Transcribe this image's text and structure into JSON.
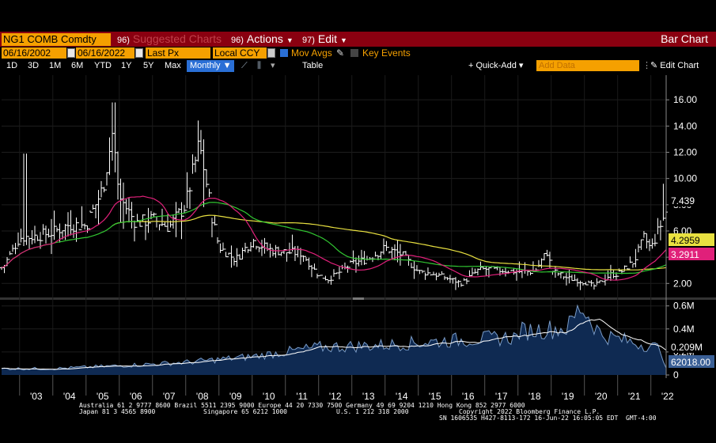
{
  "header": {
    "ticker": "NG1 COMB Comdty",
    "suggested": {
      "num": "96)",
      "label": "Suggested Charts"
    },
    "actions": {
      "num": "96)",
      "label": "Actions"
    },
    "edit": {
      "num": "97)",
      "label": "Edit"
    },
    "chart_type": "Bar Chart"
  },
  "toolbar": {
    "start_date": "06/16/2002",
    "end_date": "06/16/2022",
    "field": "Last Px",
    "currency": "Local CCY",
    "mov_avgs": "Mov Avgs",
    "key_events": "Key Events",
    "periods": [
      "1D",
      "3D",
      "1M",
      "6M",
      "YTD",
      "1Y",
      "5Y",
      "Max"
    ],
    "frequency": "Monthly",
    "table": "Table",
    "quick_add": "Quick-Add",
    "add_data_placeholder": "Add Data",
    "edit_chart": "Edit Chart"
  },
  "footer": {
    "line1": "Australia 61 2 9777 8600 Brazil 5511 2395 9000 Europe 44 20 7330 7500 Germany 49 69 9204 1210 Hong Kong 852 2977 6000",
    "line2a": "Japan 81 3 4565 8900",
    "line2b": "Singapore 65 6212 1000",
    "line2c": "U.S. 1 212 318 2000",
    "line2d": "Copyright 2022 Bloomberg Finance L.P.",
    "line3": "SN 1606535 H427-8113-172 16-Jun-22 16:05:05 EDT  GMT-4:00"
  },
  "colors": {
    "background": "#000000",
    "header_bar": "#8a0010",
    "field_orange": "#f5a000",
    "price_bars": "#ffffff",
    "ma_magenta": "#e0207a",
    "ma_green": "#32c832",
    "ma_yellow": "#e8e040",
    "volume_fill": "#0f2a52",
    "volume_line": "#7a9cc8"
  },
  "chart_data": [
    {
      "type": "bar",
      "description": "Monthly OHLC price bars",
      "x_ticks": [
        "'03",
        "'04",
        "'05",
        "'06",
        "'07",
        "'08",
        "'09",
        "'10",
        "'11",
        "'12",
        "'13",
        "'14",
        "'15",
        "'16",
        "'17",
        "'18",
        "'19",
        "'20",
        "'21",
        "'22"
      ],
      "y_ticks": [
        2,
        4,
        6,
        8,
        10,
        12,
        14,
        16
      ],
      "y_tick_labels": [
        "2.00",
        "4.00",
        "6.00",
        "8.00",
        "10.00",
        "12.00",
        "14.00",
        "16.00"
      ],
      "ylim": [
        0.7,
        17.2
      ],
      "x_range": [
        "2002-06",
        "2022-06"
      ],
      "series": [
        {
          "name": "Last Px",
          "years": [
            2002.5,
            2003,
            2003.5,
            2004,
            2004.5,
            2005,
            2005.5,
            2005.8,
            2006,
            2006.5,
            2007,
            2007.5,
            2008,
            2008.4,
            2008.5,
            2008.8,
            2009,
            2009.5,
            2010,
            2010.5,
            2011,
            2011.5,
            2012,
            2012.3,
            2013,
            2013.5,
            2014,
            2014.5,
            2015,
            2015.5,
            2016,
            2016.3,
            2016.8,
            2017,
            2017.5,
            2018,
            2018.5,
            2018.9,
            2019,
            2019.5,
            2020,
            2020.3,
            2020.8,
            2021,
            2021.5,
            2021.8,
            2022,
            2022.3,
            2022.45
          ],
          "values": [
            3.2,
            5.5,
            5.6,
            5.9,
            6.5,
            6.4,
            9.2,
            13.5,
            8.6,
            6.6,
            6.9,
            6.3,
            8.0,
            12.5,
            11.5,
            7.0,
            4.8,
            3.8,
            5.3,
            4.6,
            4.4,
            4.3,
            2.6,
            2.3,
            3.5,
            3.9,
            4.7,
            4.2,
            2.9,
            2.7,
            2.3,
            2.0,
            3.0,
            3.1,
            3.0,
            2.9,
            2.9,
            4.5,
            3.0,
            2.4,
            2.1,
            1.8,
            2.7,
            2.7,
            3.7,
            5.5,
            4.6,
            6.5,
            7.44
          ]
        },
        {
          "name": "Mov Avg (magenta)",
          "value_last": 3.2911
        },
        {
          "name": "Mov Avg (green)"
        },
        {
          "name": "Mov Avg (yellow)",
          "value_last": 4.2959
        }
      ],
      "last_value_labels": [
        "7.439",
        "4.2959",
        "3.2911"
      ]
    },
    {
      "type": "area",
      "description": "Volume",
      "y_ticks": [
        0,
        200000,
        400000,
        600000
      ],
      "y_tick_labels": [
        "0",
        "0.2M",
        "0.4M",
        "0.6M"
      ],
      "ylim": [
        0,
        650000
      ],
      "values_by_year": {
        "2002.5": 45000,
        "2004": 55000,
        "2006": 80000,
        "2008": 110000,
        "2010": 160000,
        "2012": 240000,
        "2014": 260000,
        "2016": 300000,
        "2018": 330000,
        "2019.5": 410000,
        "2019.9": 600000,
        "2020.5": 350000,
        "2021.5": 280000,
        "2022.3": 230000,
        "2022.45": 62018
      },
      "last_value_labels": [
        "0.209M",
        "62018.00"
      ]
    }
  ]
}
